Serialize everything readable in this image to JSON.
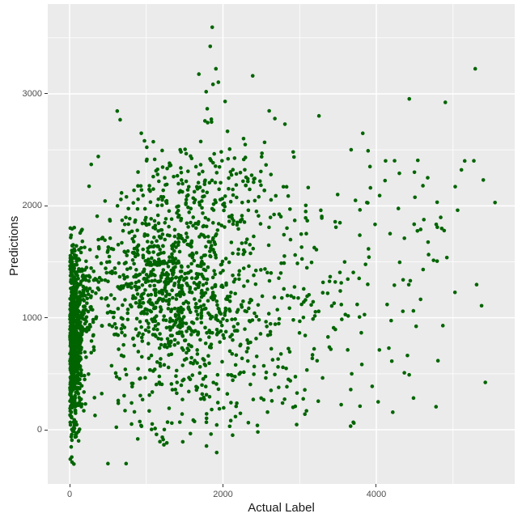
{
  "figure": {
    "background": "#FFFFFF"
  },
  "chart_data": {
    "type": "scatter",
    "title": "",
    "xlabel": "Actual Label",
    "ylabel": "Predictions",
    "xlim": [
      -285,
      5805
    ],
    "ylim": [
      -484,
      3802
    ],
    "grid": true,
    "legend_position": "none",
    "x_ticks": [
      {
        "value": 0,
        "label": "0"
      },
      {
        "value": 2000,
        "label": "2000"
      },
      {
        "value": 4000,
        "label": "4000"
      }
    ],
    "y_ticks": [
      {
        "value": 0,
        "label": "0"
      },
      {
        "value": 1000,
        "label": "1000"
      },
      {
        "value": 2000,
        "label": "2000"
      },
      {
        "value": 3000,
        "label": "3000"
      }
    ],
    "x_minor_gridlines": [
      1000,
      3000,
      5000
    ],
    "y_minor_gridlines": [
      500,
      1500,
      2500,
      3500
    ],
    "style": {
      "panel_background": "#EBEBEB",
      "major_gridline_color": "#FFFFFF",
      "minor_gridline_color": "#FFFFFF",
      "major_gridline_width": 1.5,
      "minor_gridline_width": 0.8,
      "axis_text_color": "#4D4D4D",
      "axis_title_color": "#1A1A1A",
      "tick_mark_color": "#333333",
      "point_color": "#006400",
      "point_radius_px": 2.3
    },
    "points": {
      "seed": 20240917,
      "explicit": [
        [
          1860,
          3595
        ],
        [
          1834,
          3424
        ],
        [
          1908,
          3224
        ],
        [
          1686,
          3176
        ],
        [
          1940,
          3104
        ],
        [
          1870,
          3085
        ],
        [
          2388,
          3161
        ],
        [
          1781,
          3019
        ],
        [
          2028,
          2932
        ],
        [
          1795,
          2867
        ],
        [
          2603,
          2848
        ],
        [
          2677,
          2779
        ],
        [
          3252,
          2803
        ],
        [
          4430,
          2955
        ],
        [
          4900,
          2924
        ],
        [
          5290,
          3224
        ],
        [
          5272,
          2402
        ],
        [
          5110,
          2321
        ],
        [
          5029,
          2171
        ],
        [
          5548,
          2029
        ],
        [
          4793,
          2032
        ],
        [
          4853,
          1798
        ],
        [
          4920,
          1538
        ],
        [
          4793,
          1506
        ],
        [
          5308,
          1296
        ],
        [
          808,
          51
        ],
        [
          938,
          31
        ],
        [
          1919,
          43
        ],
        [
          3707,
          60
        ],
        [
          889,
          -82
        ],
        [
          1178,
          -106
        ],
        [
          1785,
          -145
        ],
        [
          2966,
          328
        ],
        [
          3542,
          224
        ],
        [
          3700,
          67
        ],
        [
          2088,
          31
        ],
        [
          32,
          -289
        ],
        [
          56,
          -306
        ],
        [
          500,
          -302
        ],
        [
          737,
          -302
        ]
      ],
      "clusters": [
        {
          "name": "left-column-core",
          "n": 620,
          "x": {
            "dist": "halfnormal",
            "base": 5,
            "sd": 70,
            "min": 0,
            "max": 420
          },
          "y": {
            "dist": "normal",
            "mean": 750,
            "sd": 420,
            "min": -280,
            "max": 1900
          }
        },
        {
          "name": "left-column-blend",
          "n": 200,
          "x": {
            "dist": "halfnormal",
            "base": 10,
            "sd": 150,
            "min": 0,
            "max": 700
          },
          "y": {
            "dist": "normal",
            "mean": 1150,
            "sd": 330,
            "min": 50,
            "max": 1850
          }
        },
        {
          "name": "main-cloud",
          "n": 720,
          "x": {
            "dist": "normal",
            "mean": 1250,
            "sd": 520,
            "min": 80,
            "max": 3000
          },
          "y": {
            "dist": "normal",
            "mean": 1300,
            "sd": 420,
            "min": 0,
            "max": 2500
          }
        },
        {
          "name": "wide-mid",
          "n": 360,
          "x": {
            "dist": "normal",
            "mean": 1900,
            "sd": 750,
            "min": 120,
            "max": 4400
          },
          "y": {
            "dist": "normal",
            "mean": 900,
            "sd": 470,
            "min": -150,
            "max": 2350
          }
        },
        {
          "name": "upper-arm",
          "n": 190,
          "x": {
            "dist": "normal",
            "mean": 1800,
            "sd": 480,
            "min": 400,
            "max": 3200
          },
          "y": {
            "dist": "normal",
            "mean": 2150,
            "sd": 270,
            "min": 1600,
            "max": 2950
          }
        },
        {
          "name": "right-sparse",
          "n": 130,
          "x": {
            "dist": "uniform",
            "min": 2600,
            "max": 4900
          },
          "y": {
            "dist": "normal",
            "mean": 1350,
            "sd": 600,
            "min": 150,
            "max": 2800
          }
        },
        {
          "name": "low-tail",
          "n": 22,
          "x": {
            "dist": "uniform",
            "min": 250,
            "max": 3900
          },
          "y": {
            "dist": "normal",
            "mean": 120,
            "sd": 170,
            "min": -330,
            "max": 420
          }
        },
        {
          "name": "far-right",
          "n": 8,
          "x": {
            "dist": "uniform",
            "min": 4650,
            "max": 5500
          },
          "y": {
            "dist": "uniform",
            "min": 350,
            "max": 2450
          }
        }
      ]
    }
  }
}
